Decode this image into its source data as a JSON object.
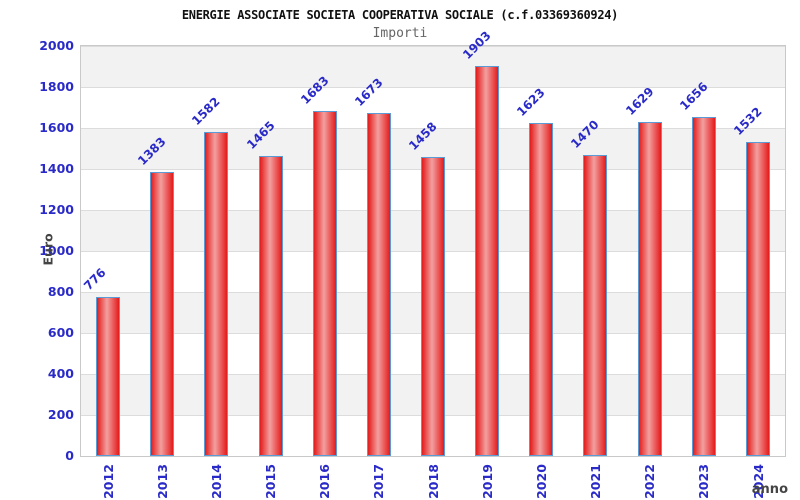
{
  "header": {
    "title": "ENERGIE ASSOCIATE SOCIETA COOPERATIVA SOCIALE (c.f.03369360924)",
    "subtitle": "Importi"
  },
  "chart_data": {
    "type": "bar",
    "title": "ENERGIE ASSOCIATE SOCIETA COOPERATIVA SOCIALE (c.f.03369360924)",
    "subtitle": "Importi",
    "categories": [
      "2012",
      "2013",
      "2014",
      "2015",
      "2016",
      "2017",
      "2018",
      "2019",
      "2020",
      "2021",
      "2022",
      "2023",
      "2024"
    ],
    "values": [
      776,
      1383,
      1582,
      1465,
      1683,
      1673,
      1458,
      1903,
      1623,
      1470,
      1629,
      1656,
      1532
    ],
    "xlabel": "anno",
    "ylabel": "Euro",
    "ylim": [
      0,
      2000
    ],
    "ytick_step": 200,
    "yticks": [
      0,
      200,
      400,
      600,
      800,
      1000,
      1200,
      1400,
      1600,
      1800,
      2000
    ],
    "grid": true,
    "legend": false,
    "colors": {
      "bar_fill_edge": "#e31b1b",
      "bar_fill_center": "#f3a0a0",
      "bar_border": "#5b9bd5",
      "value_label": "#2a2ac8",
      "tick_label": "#2a2ac8",
      "axis_title": "#444444",
      "band": "#f2f2f2",
      "gridline": "#dcdcdc",
      "plot_border": "#c9c9c9",
      "title": "#111111",
      "subtitle": "#666666"
    }
  }
}
